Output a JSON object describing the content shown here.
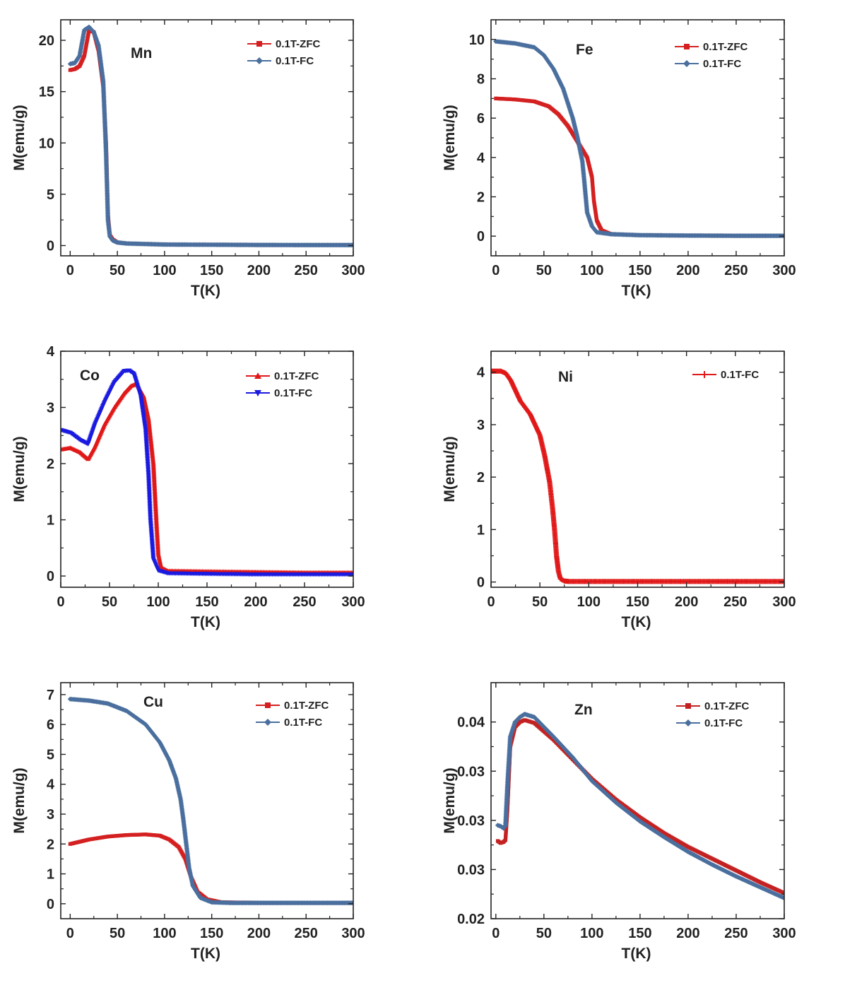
{
  "chart_data": [
    {
      "type": "scatter",
      "panel_label": "Mn",
      "xlabel": "T(K)",
      "ylabel": "M(emu/g)",
      "xlim": [
        -10,
        300
      ],
      "ylim": [
        -1,
        22
      ],
      "xticks": [
        0,
        50,
        100,
        150,
        200,
        250,
        300
      ],
      "yticks": [
        0,
        5,
        10,
        15,
        20
      ],
      "legend_position": "top-right",
      "series": [
        {
          "name": "0.1T-ZFC",
          "color": "#d42020",
          "marker": "square",
          "x": [
            0,
            5,
            10,
            15,
            20,
            25,
            30,
            35,
            38,
            40,
            42,
            45,
            50,
            60,
            80,
            100,
            150,
            200,
            250,
            300
          ],
          "y": [
            17.1,
            17.2,
            17.5,
            18.5,
            21.0,
            20.8,
            19.0,
            15.5,
            10.0,
            3.0,
            1.0,
            0.6,
            0.3,
            0.2,
            0.15,
            0.1,
            0.08,
            0.06,
            0.05,
            0.05
          ]
        },
        {
          "name": "0.1T-FC",
          "color": "#4a6f9e",
          "marker": "diamond",
          "x": [
            0,
            5,
            10,
            15,
            20,
            25,
            30,
            35,
            38,
            40,
            42,
            45,
            50,
            60,
            80,
            100,
            150,
            200,
            250,
            300
          ],
          "y": [
            17.7,
            17.8,
            18.5,
            21.0,
            21.3,
            20.8,
            19.5,
            16.0,
            9.0,
            2.5,
            0.9,
            0.5,
            0.3,
            0.2,
            0.15,
            0.1,
            0.08,
            0.06,
            0.05,
            0.05
          ]
        }
      ]
    },
    {
      "type": "scatter",
      "panel_label": "Fe",
      "xlabel": "T(K)",
      "ylabel": "M(emu/g)",
      "xlim": [
        -5,
        300
      ],
      "ylim": [
        -1,
        11
      ],
      "xticks": [
        0,
        50,
        100,
        150,
        200,
        250,
        300
      ],
      "yticks": [
        0,
        2,
        4,
        6,
        8,
        10
      ],
      "legend_position": "top-right",
      "series": [
        {
          "name": "0.1T-ZFC",
          "color": "#d42020",
          "marker": "square",
          "x": [
            0,
            20,
            40,
            55,
            65,
            75,
            85,
            95,
            100,
            102,
            105,
            110,
            120,
            150,
            200,
            250,
            300
          ],
          "y": [
            7.0,
            6.95,
            6.85,
            6.6,
            6.2,
            5.6,
            4.8,
            4.0,
            3.0,
            1.8,
            0.8,
            0.3,
            0.1,
            0.05,
            0.03,
            0.02,
            0.02
          ]
        },
        {
          "name": "0.1T-FC",
          "color": "#4a6f9e",
          "marker": "diamond",
          "x": [
            0,
            20,
            40,
            50,
            60,
            70,
            80,
            85,
            90,
            92,
            95,
            100,
            105,
            120,
            150,
            200,
            250,
            300
          ],
          "y": [
            9.9,
            9.8,
            9.6,
            9.2,
            8.5,
            7.5,
            6.0,
            5.0,
            3.8,
            2.8,
            1.2,
            0.5,
            0.2,
            0.1,
            0.05,
            0.03,
            0.02,
            0.02
          ]
        }
      ]
    },
    {
      "type": "scatter",
      "panel_label": "Co",
      "xlabel": "T(K)",
      "ylabel": "M(emu/g)",
      "xlim": [
        0,
        300
      ],
      "ylim": [
        -0.2,
        4
      ],
      "xticks": [
        0,
        50,
        100,
        150,
        200,
        250,
        300
      ],
      "yticks": [
        0,
        1,
        2,
        3,
        4
      ],
      "legend_position": "top-right",
      "series": [
        {
          "name": "0.1T-ZFC",
          "color": "#e01818",
          "marker": "triangle-up",
          "x": [
            0,
            10,
            20,
            28,
            35,
            45,
            55,
            65,
            72,
            78,
            85,
            90,
            95,
            98,
            100,
            103,
            110,
            150,
            200,
            250,
            300
          ],
          "y": [
            2.25,
            2.28,
            2.2,
            2.08,
            2.3,
            2.7,
            3.0,
            3.25,
            3.38,
            3.42,
            3.2,
            2.8,
            2.0,
            1.0,
            0.4,
            0.15,
            0.09,
            0.08,
            0.07,
            0.06,
            0.06
          ]
        },
        {
          "name": "0.1T-FC",
          "color": "#1a1ae0",
          "marker": "triangle-down",
          "x": [
            0,
            10,
            20,
            28,
            35,
            45,
            55,
            65,
            70,
            75,
            82,
            87,
            90,
            92,
            95,
            100,
            110,
            150,
            200,
            250,
            300
          ],
          "y": [
            2.6,
            2.55,
            2.42,
            2.35,
            2.7,
            3.1,
            3.45,
            3.65,
            3.66,
            3.6,
            3.2,
            2.6,
            1.8,
            1.0,
            0.3,
            0.1,
            0.05,
            0.04,
            0.03,
            0.03,
            0.03
          ]
        }
      ]
    },
    {
      "type": "scatter",
      "panel_label": "Ni",
      "xlabel": "T(K)",
      "ylabel": "M(emu/g)",
      "xlim": [
        0,
        300
      ],
      "ylim": [
        -0.1,
        4.4
      ],
      "xticks": [
        0,
        50,
        100,
        150,
        200,
        250,
        300
      ],
      "yticks": [
        0,
        1,
        2,
        3,
        4
      ],
      "legend_position": "top-right",
      "series": [
        {
          "name": "0.1T-FC",
          "color": "#e01818",
          "marker": "plus",
          "x": [
            0,
            10,
            15,
            20,
            25,
            30,
            40,
            50,
            55,
            60,
            63,
            65,
            67,
            69,
            71,
            75,
            80,
            100,
            150,
            200,
            250,
            300
          ],
          "y": [
            4.02,
            4.02,
            3.98,
            3.85,
            3.65,
            3.45,
            3.2,
            2.8,
            2.4,
            1.9,
            1.4,
            1.0,
            0.5,
            0.2,
            0.06,
            0.02,
            0.01,
            0.01,
            0.01,
            0.01,
            0.01,
            0.01
          ]
        }
      ]
    },
    {
      "type": "scatter",
      "panel_label": "Cu",
      "xlabel": "T(K)",
      "ylabel": "M(emu/g)",
      "xlim": [
        -10,
        300
      ],
      "ylim": [
        -0.5,
        7.4
      ],
      "xticks": [
        0,
        50,
        100,
        150,
        200,
        250,
        300
      ],
      "yticks": [
        0,
        1,
        2,
        3,
        4,
        5,
        6,
        7
      ],
      "legend_position": "top-right",
      "series": [
        {
          "name": "0.1T-ZFC",
          "color": "#d42020",
          "marker": "square",
          "x": [
            0,
            20,
            40,
            60,
            80,
            95,
            105,
            115,
            122,
            128,
            135,
            145,
            160,
            200,
            250,
            300
          ],
          "y": [
            2.0,
            2.15,
            2.25,
            2.3,
            2.32,
            2.28,
            2.15,
            1.9,
            1.5,
            0.9,
            0.4,
            0.15,
            0.05,
            0.03,
            0.03,
            0.03
          ]
        },
        {
          "name": "0.1T-FC",
          "color": "#4a6f9e",
          "marker": "diamond",
          "x": [
            0,
            20,
            40,
            60,
            80,
            95,
            105,
            112,
            117,
            120,
            123,
            126,
            130,
            138,
            150,
            170,
            200,
            250,
            300
          ],
          "y": [
            6.85,
            6.8,
            6.7,
            6.45,
            6.0,
            5.4,
            4.8,
            4.2,
            3.5,
            2.8,
            2.0,
            1.2,
            0.6,
            0.2,
            0.05,
            0.03,
            0.03,
            0.03,
            0.03
          ]
        }
      ]
    },
    {
      "type": "scatter",
      "panel_label": "Zn",
      "xlabel": "T(K)",
      "ylabel": "M(emu/g)",
      "xlim": [
        -5,
        300
      ],
      "ylim": [
        0.02,
        0.044
      ],
      "xticks": [
        0,
        50,
        100,
        150,
        200,
        250,
        300
      ],
      "yticks": [
        0.02,
        0.025,
        0.03,
        0.035,
        0.04
      ],
      "ytick_labels": [
        "0.02",
        "0.03",
        "0.03",
        "0.03",
        "0.04"
      ],
      "legend_position": "top-right",
      "series": [
        {
          "name": "0.1T-ZFC",
          "color": "#c42222",
          "marker": "square",
          "x": [
            2,
            5,
            8,
            10,
            12,
            15,
            20,
            25,
            30,
            40,
            60,
            80,
            100,
            125,
            150,
            175,
            200,
            225,
            250,
            275,
            300
          ],
          "y": [
            0.0279,
            0.0277,
            0.0278,
            0.028,
            0.031,
            0.0375,
            0.0395,
            0.04,
            0.0402,
            0.0399,
            0.0382,
            0.0362,
            0.0342,
            0.0321,
            0.0303,
            0.0287,
            0.0273,
            0.0261,
            0.0249,
            0.0237,
            0.0226
          ]
        },
        {
          "name": "0.1T-FC",
          "color": "#4a6f9e",
          "marker": "diamond",
          "x": [
            2,
            5,
            8,
            10,
            12,
            15,
            20,
            25,
            30,
            40,
            60,
            80,
            100,
            125,
            150,
            175,
            200,
            225,
            250,
            275,
            300
          ],
          "y": [
            0.0295,
            0.0294,
            0.0292,
            0.0295,
            0.0335,
            0.0385,
            0.04,
            0.0405,
            0.0408,
            0.0405,
            0.0385,
            0.0364,
            0.034,
            0.0318,
            0.0299,
            0.0283,
            0.0268,
            0.0255,
            0.0243,
            0.0232,
            0.0221
          ]
        }
      ]
    }
  ]
}
